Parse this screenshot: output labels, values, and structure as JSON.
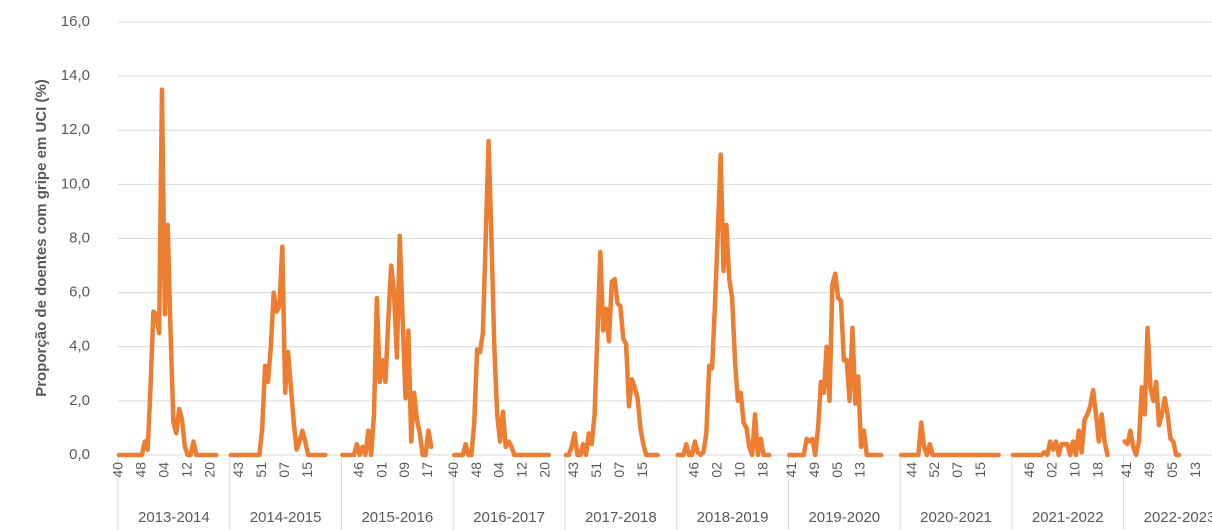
{
  "chart_data": {
    "type": "line",
    "ylabel": "Proporção de doentes com gripe em UCI (%)",
    "ylim": [
      0,
      16
    ],
    "yticks": [
      {
        "value": 0,
        "label": "0,0"
      },
      {
        "value": 2,
        "label": "2,0"
      },
      {
        "value": 4,
        "label": "4,0"
      },
      {
        "value": 6,
        "label": "6,0"
      },
      {
        "value": 8,
        "label": "8,0"
      },
      {
        "value": 10,
        "label": "10,0"
      },
      {
        "value": 12,
        "label": "12,0"
      },
      {
        "value": 14,
        "label": "14,0"
      },
      {
        "value": 16,
        "label": "16,0"
      }
    ],
    "grid": true,
    "color": "#ED7D31",
    "seasons": [
      {
        "name": "2013-2014",
        "categories": [
          "40",
          null,
          null,
          null,
          null,
          null,
          null,
          null,
          "48",
          null,
          null,
          null,
          null,
          null,
          null,
          null,
          "04",
          null,
          null,
          null,
          null,
          null,
          null,
          null,
          "12",
          null,
          null,
          null,
          null,
          null,
          null,
          null,
          "20",
          null,
          null,
          null,
          null,
          null,
          null
        ],
        "values": [
          0,
          0,
          0,
          0,
          0,
          0,
          0,
          0,
          0,
          0.5,
          0.2,
          2.5,
          5.3,
          5.2,
          4.5,
          13.5,
          5.2,
          8.5,
          4.5,
          1.2,
          0.8,
          1.7,
          1.3,
          0.3,
          0,
          0,
          0.5,
          0,
          0,
          0,
          0,
          0,
          0,
          0,
          0,
          null,
          null,
          null,
          null
        ]
      },
      {
        "name": "2014-2015",
        "categories": [
          null,
          null,
          null,
          "43",
          null,
          null,
          null,
          null,
          null,
          null,
          null,
          "51",
          null,
          null,
          null,
          null,
          null,
          null,
          null,
          "07",
          null,
          null,
          null,
          null,
          null,
          null,
          null,
          "15",
          null,
          null,
          null,
          null,
          null,
          null,
          null,
          null,
          null,
          null,
          null
        ],
        "values": [
          0,
          0,
          0,
          0,
          0,
          0,
          0,
          0,
          0,
          0,
          0,
          1.0,
          3.3,
          2.7,
          4.0,
          6.0,
          5.3,
          5.5,
          7.7,
          2.3,
          3.8,
          2.5,
          1.2,
          0.2,
          0.5,
          0.9,
          0.5,
          0,
          0,
          0,
          0,
          0,
          0,
          0,
          null,
          null,
          null,
          null,
          null
        ]
      },
      {
        "name": "2015-2016",
        "categories": [
          null,
          null,
          null,
          null,
          null,
          null,
          "46",
          null,
          null,
          null,
          null,
          null,
          null,
          null,
          "01",
          null,
          null,
          null,
          null,
          null,
          null,
          null,
          "09",
          null,
          null,
          null,
          null,
          null,
          null,
          null,
          "17",
          null,
          null,
          null,
          null,
          null,
          null,
          null,
          null
        ],
        "values": [
          0,
          0,
          0,
          0,
          0,
          0.4,
          0,
          0.3,
          0,
          0.9,
          0,
          1.5,
          5.8,
          2.7,
          3.5,
          2.7,
          5.0,
          7.0,
          6.0,
          3.6,
          8.1,
          5.0,
          2.1,
          4.6,
          0.5,
          2.3,
          1.3,
          0.8,
          0,
          0,
          0.9,
          0.3,
          null,
          null,
          null,
          null,
          null,
          null,
          null
        ]
      },
      {
        "name": "2016-2017",
        "categories": [
          "40",
          null,
          null,
          null,
          null,
          null,
          null,
          null,
          "48",
          null,
          null,
          null,
          null,
          null,
          null,
          null,
          "04",
          null,
          null,
          null,
          null,
          null,
          null,
          null,
          "12",
          null,
          null,
          null,
          null,
          null,
          null,
          null,
          "20",
          null,
          null,
          null,
          null,
          null,
          null
        ],
        "values": [
          0,
          0,
          0,
          0,
          0.4,
          0,
          0,
          1.2,
          3.9,
          3.8,
          4.5,
          8.0,
          11.6,
          8.0,
          4.0,
          1.5,
          0.5,
          1.6,
          0.3,
          0.5,
          0.3,
          0,
          0,
          0,
          0,
          0,
          0,
          0,
          0,
          0,
          0,
          0,
          0,
          0,
          null,
          null,
          null,
          null,
          null
        ]
      },
      {
        "name": "2017-2018",
        "categories": [
          null,
          null,
          null,
          "43",
          null,
          null,
          null,
          null,
          null,
          null,
          null,
          "51",
          null,
          null,
          null,
          null,
          null,
          null,
          null,
          "07",
          null,
          null,
          null,
          null,
          null,
          null,
          null,
          "15",
          null,
          null,
          null,
          null,
          null,
          null,
          null,
          null,
          null,
          null,
          null
        ],
        "values": [
          0,
          0,
          0.3,
          0.8,
          0,
          0,
          0.4,
          0,
          0.8,
          0.4,
          1.5,
          4.5,
          7.5,
          4.6,
          5.4,
          4.2,
          6.4,
          6.5,
          5.6,
          5.5,
          4.3,
          4.1,
          1.8,
          2.8,
          2.5,
          2.1,
          1.0,
          0.4,
          0,
          0,
          0,
          0,
          0,
          null,
          null,
          null,
          null,
          null,
          null
        ]
      },
      {
        "name": "2018-2019",
        "categories": [
          null,
          null,
          null,
          null,
          null,
          null,
          "46",
          null,
          null,
          null,
          null,
          null,
          null,
          null,
          "02",
          null,
          null,
          null,
          null,
          null,
          null,
          null,
          "10",
          null,
          null,
          null,
          null,
          null,
          null,
          null,
          "18",
          null,
          null,
          null,
          null,
          null,
          null,
          null,
          null
        ],
        "values": [
          0,
          0,
          0,
          0.4,
          0,
          0,
          0.5,
          0.1,
          0,
          0.1,
          0.8,
          3.3,
          3.2,
          5.5,
          8.2,
          11.1,
          6.8,
          8.5,
          6.5,
          5.8,
          3.5,
          2.0,
          2.3,
          1.2,
          1.0,
          0.3,
          0,
          1.5,
          0,
          0.6,
          0,
          0,
          0,
          null,
          null,
          null,
          null,
          null,
          null
        ]
      },
      {
        "name": "2019-2020",
        "categories": [
          null,
          "41",
          null,
          null,
          null,
          null,
          null,
          null,
          null,
          "49",
          null,
          null,
          null,
          null,
          null,
          null,
          null,
          "05",
          null,
          null,
          null,
          null,
          null,
          null,
          null,
          "13",
          null,
          null,
          null,
          null,
          null,
          null,
          null,
          null,
          null,
          null,
          null,
          null,
          null
        ],
        "values": [
          0,
          0,
          0,
          0,
          0,
          0,
          0.6,
          0.5,
          0.6,
          0,
          1.0,
          2.7,
          2.3,
          4.0,
          2.0,
          6.3,
          6.7,
          5.8,
          5.7,
          3.5,
          3.5,
          2.0,
          4.7,
          1.9,
          2.9,
          0.3,
          0.9,
          0,
          0,
          0,
          0,
          0,
          0,
          null,
          null,
          null,
          null,
          null,
          null
        ]
      },
      {
        "name": "2020-2021",
        "categories": [
          null,
          null,
          null,
          null,
          "44",
          null,
          null,
          null,
          null,
          null,
          null,
          null,
          "52",
          null,
          null,
          null,
          null,
          null,
          null,
          null,
          "07",
          null,
          null,
          null,
          null,
          null,
          null,
          null,
          "15",
          null,
          null,
          null,
          null,
          null,
          null,
          null,
          null,
          null,
          null
        ],
        "values": [
          0,
          0,
          0,
          0,
          0,
          0,
          0,
          1.2,
          0.3,
          0,
          0.4,
          0,
          0,
          0,
          0,
          0,
          0,
          0,
          0,
          0,
          0,
          0,
          0,
          0,
          0,
          0,
          0,
          0,
          0,
          0,
          0,
          0,
          0,
          0,
          0,
          null,
          null,
          null,
          null
        ]
      },
      {
        "name": "2021-2022",
        "categories": [
          null,
          null,
          null,
          null,
          null,
          null,
          "46",
          null,
          null,
          null,
          null,
          null,
          null,
          null,
          "02",
          null,
          null,
          null,
          null,
          null,
          null,
          null,
          "10",
          null,
          null,
          null,
          null,
          null,
          null,
          null,
          "18",
          null,
          null,
          null,
          null,
          null,
          null,
          null,
          null
        ],
        "values": [
          0,
          0,
          0,
          0,
          0,
          0,
          0,
          0,
          0,
          0,
          0,
          0.1,
          0,
          0.5,
          0.2,
          0.5,
          0,
          0.4,
          0.4,
          0.4,
          0,
          0.5,
          0,
          0.9,
          0.1,
          1.3,
          1.5,
          1.8,
          2.4,
          1.5,
          0.5,
          1.5,
          0.5,
          0,
          null,
          null,
          null,
          null,
          null
        ]
      },
      {
        "name": "2022-2023",
        "categories": [
          null,
          "41",
          null,
          null,
          null,
          null,
          null,
          null,
          null,
          "49",
          null,
          null,
          null,
          null,
          null,
          null,
          null,
          "05",
          null,
          null,
          null,
          null,
          null,
          null,
          null,
          "13",
          null,
          null,
          null,
          null,
          null,
          null,
          null,
          null,
          null,
          null,
          null,
          null,
          null
        ],
        "values": [
          0.5,
          0.4,
          0.9,
          0.3,
          0,
          0.5,
          2.5,
          1.5,
          4.7,
          2.5,
          2.0,
          2.7,
          1.1,
          1.5,
          2.1,
          1.5,
          0.6,
          0.5,
          0,
          0,
          null,
          null,
          null,
          null,
          null,
          null,
          null,
          null,
          null,
          null,
          null,
          null,
          null,
          null,
          null,
          null,
          null,
          null,
          null
        ]
      }
    ]
  }
}
